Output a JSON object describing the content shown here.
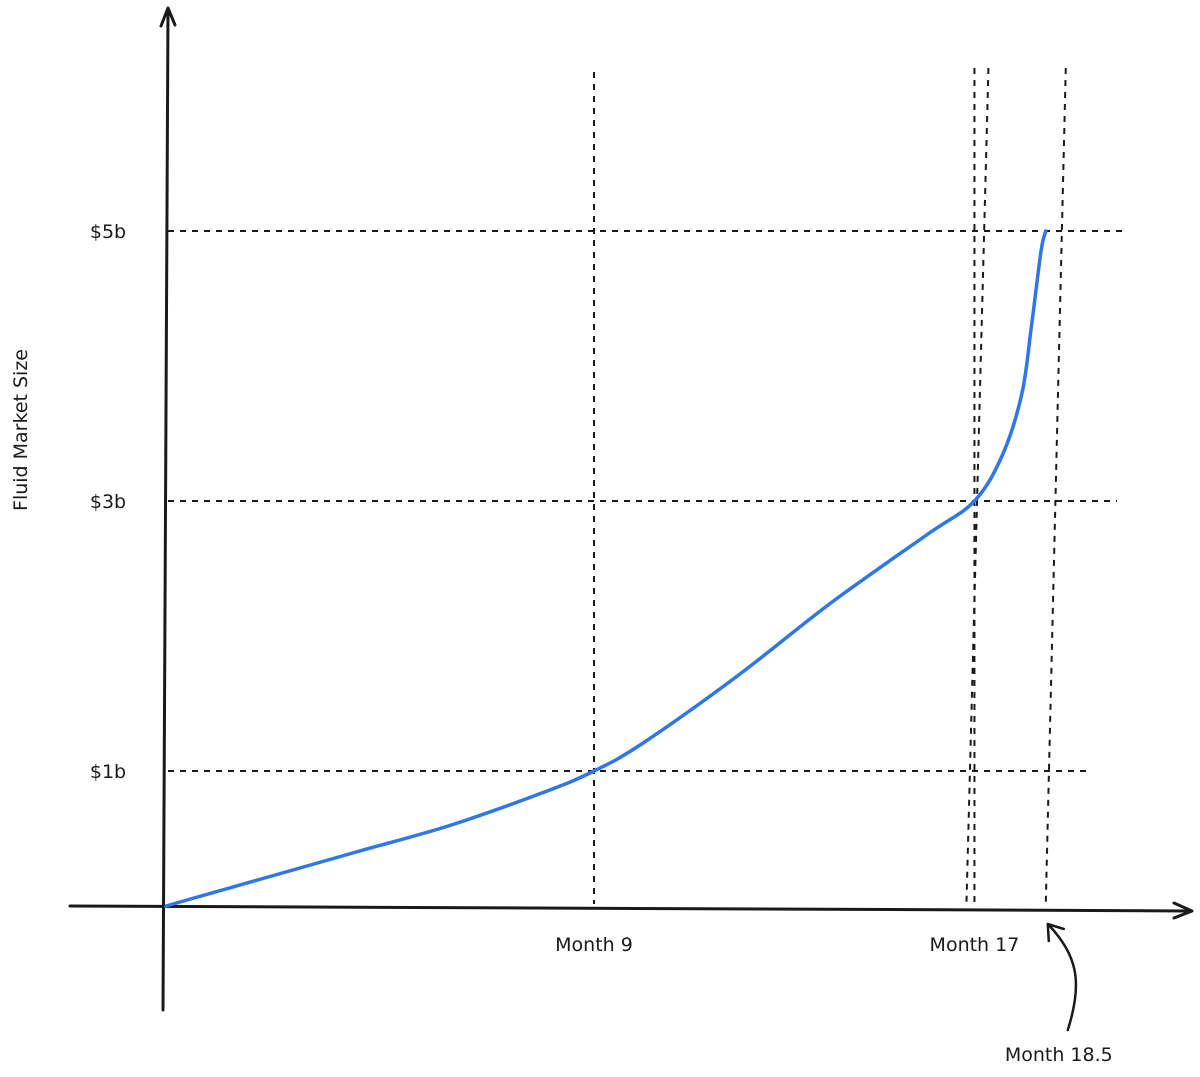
{
  "chart_data": {
    "type": "line",
    "title": "",
    "xlabel": "",
    "ylabel": "Fluid Market Size",
    "y_ticks": [
      {
        "value": 1,
        "label": "$1b"
      },
      {
        "value": 3,
        "label": "$3b"
      },
      {
        "value": 5,
        "label": "$5b"
      }
    ],
    "x_ticks": [
      {
        "value": 9,
        "label": "Month 9"
      },
      {
        "value": 17,
        "label": "Month 17"
      }
    ],
    "annotations": [
      {
        "x": 18.5,
        "label": "Month 18.5",
        "arrow": true
      }
    ],
    "xlim": [
      0,
      21.5
    ],
    "ylim": [
      -0.65,
      5.8
    ],
    "grid": false,
    "series": [
      {
        "color": "#2f76e9",
        "x": [
          0,
          2,
          4,
          6,
          8,
          9,
          10,
          12,
          14,
          16,
          17,
          17.6,
          18,
          18.2,
          18.4,
          18.5
        ],
        "y": [
          0,
          0.2,
          0.4,
          0.6,
          0.85,
          1.0,
          1.2,
          1.7,
          2.25,
          2.75,
          3.0,
          3.35,
          3.8,
          4.3,
          4.85,
          5.0
        ]
      }
    ]
  }
}
